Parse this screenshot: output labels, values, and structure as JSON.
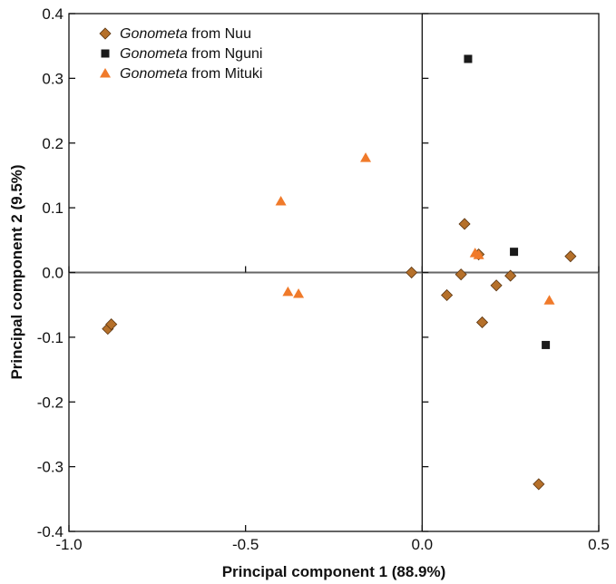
{
  "chart_data": {
    "type": "scatter",
    "xlabel": "Principal component 1 (88.9%)",
    "ylabel": "Principal component 2 (9.5%)",
    "xlim": [
      -1.0,
      0.5
    ],
    "ylim": [
      -0.4,
      0.4
    ],
    "xticks": [
      "-1.0",
      "-0.5",
      "0.0",
      "0.5"
    ],
    "yticks": [
      "0.4",
      "0.3",
      "0.2",
      "0.1",
      "0.0",
      "-0.1",
      "-0.2",
      "-0.3",
      "-0.4"
    ],
    "zero_lines": true,
    "grid": false,
    "legend_position": "top-left",
    "series": [
      {
        "name_italic": "Gonometa",
        "name_rest": " from Nuu",
        "marker": "diamond",
        "color": "#b5702a",
        "points": [
          [
            -0.89,
            -0.087
          ],
          [
            -0.88,
            -0.08
          ],
          [
            -0.03,
            0.0
          ],
          [
            0.07,
            -0.035
          ],
          [
            0.11,
            -0.003
          ],
          [
            0.12,
            0.075
          ],
          [
            0.16,
            0.028
          ],
          [
            0.17,
            -0.077
          ],
          [
            0.21,
            -0.02
          ],
          [
            0.25,
            -0.005
          ],
          [
            0.42,
            0.025
          ],
          [
            0.33,
            -0.327
          ]
        ]
      },
      {
        "name_italic": "Gonometa",
        "name_rest": " from Nguni",
        "marker": "square",
        "color": "#1a1a1a",
        "points": [
          [
            0.13,
            0.33
          ],
          [
            0.26,
            0.032
          ],
          [
            0.35,
            -0.112
          ]
        ]
      },
      {
        "name_italic": "Gonometa",
        "name_rest": " from Mituki",
        "marker": "triangle",
        "color": "#f07a2a",
        "points": [
          [
            -0.4,
            0.11
          ],
          [
            -0.16,
            0.177
          ],
          [
            -0.38,
            -0.03
          ],
          [
            -0.35,
            -0.033
          ],
          [
            0.15,
            0.03
          ],
          [
            0.16,
            0.027
          ],
          [
            0.36,
            -0.043
          ]
        ]
      }
    ]
  }
}
